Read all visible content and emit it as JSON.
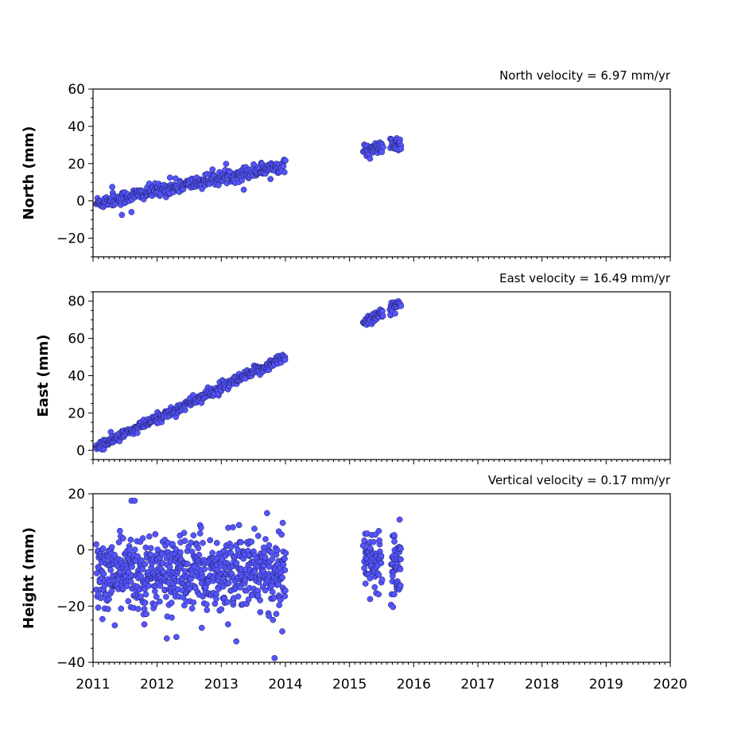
{
  "chart_data": [
    {
      "type": "scatter",
      "title": "North velocity = 6.97 mm/yr",
      "ylabel": "North (mm)",
      "xlim": [
        2011,
        2020
      ],
      "ylim": [
        -30,
        60
      ],
      "yticks": [
        -20,
        0,
        20,
        40,
        60
      ],
      "marker_color": "#5555ff",
      "series": [
        {
          "trend": {
            "x0": 2011.0,
            "y0": -1.5,
            "slope": 6.97
          },
          "segments": [
            {
              "x_start": 2011.05,
              "x_end": 2014.0,
              "count": 380,
              "scatter": 1.8
            },
            {
              "x_start": 2015.22,
              "x_end": 2015.52,
              "count": 50,
              "scatter": 1.5
            },
            {
              "x_start": 2015.63,
              "x_end": 2015.8,
              "count": 30,
              "scatter": 2.0
            }
          ],
          "outliers": [
            {
              "x": 2011.3,
              "y": 7.5
            },
            {
              "x": 2011.45,
              "y": -7.5
            },
            {
              "x": 2011.6,
              "y": -6.0
            },
            {
              "x": 2012.2,
              "y": 12.5
            },
            {
              "x": 2013.35,
              "y": 6.0
            }
          ]
        }
      ],
      "x_anchor": [
        2015.22,
        2015.52,
        2015.63,
        2015.8
      ],
      "y_anchor": [
        27,
        29,
        29,
        31
      ]
    },
    {
      "type": "scatter",
      "title": "East velocity = 16.49 mm/yr",
      "ylabel": "East (mm)",
      "xlim": [
        2011,
        2020
      ],
      "ylim": [
        -5,
        85
      ],
      "yticks": [
        0,
        20,
        40,
        60,
        80
      ],
      "marker_color": "#5555ff",
      "series": [
        {
          "trend": {
            "x0": 2011.0,
            "y0": 0.5,
            "slope": 16.49
          },
          "segments": [
            {
              "x_start": 2011.05,
              "x_end": 2014.0,
              "count": 380,
              "scatter": 1.4
            },
            {
              "x_start": 2015.22,
              "x_end": 2015.52,
              "count": 50,
              "scatter": 1.6
            },
            {
              "x_start": 2015.63,
              "x_end": 2015.8,
              "count": 30,
              "scatter": 2.0
            }
          ],
          "outliers": []
        }
      ],
      "x_anchor": [
        2015.22,
        2015.52,
        2015.63,
        2015.8
      ],
      "y_anchor": [
        70,
        73,
        74,
        79
      ]
    },
    {
      "type": "scatter",
      "title": "Vertical velocity = 0.17 mm/yr",
      "ylabel": "Height (mm)",
      "xlabel": "",
      "xlim": [
        2011,
        2020
      ],
      "ylim": [
        -40,
        20
      ],
      "yticks": [
        -40,
        -20,
        0,
        20
      ],
      "xticks": [
        2011,
        2012,
        2013,
        2014,
        2015,
        2016,
        2017,
        2018,
        2019,
        2020
      ],
      "marker_color": "#5555ff",
      "series": [
        {
          "trend": {
            "x0": 2011.0,
            "y0": -8.5,
            "slope": 0.17
          },
          "segments": [
            {
              "x_start": 2011.05,
              "x_end": 2014.0,
              "count": 700,
              "scatter": 6.5
            },
            {
              "x_start": 2015.22,
              "x_end": 2015.5,
              "count": 70,
              "scatter": 5.0
            },
            {
              "x_start": 2015.65,
              "x_end": 2015.8,
              "count": 50,
              "scatter": 6.0
            }
          ],
          "outliers": [
            {
              "x": 2011.6,
              "y": 17.5
            },
            {
              "x": 2011.65,
              "y": 17.5
            },
            {
              "x": 2012.15,
              "y": -31.5
            },
            {
              "x": 2012.3,
              "y": -31.0
            },
            {
              "x": 2013.83,
              "y": -38.5
            },
            {
              "x": 2013.95,
              "y": -29.0
            },
            {
              "x": 2015.32,
              "y": -17.5
            },
            {
              "x": 2015.78,
              "y": 10.8
            },
            {
              "x": 2011.8,
              "y": -26.5
            }
          ]
        }
      ],
      "x_anchor": [
        2015.22,
        2015.5,
        2015.65,
        2015.8
      ],
      "y_anchor": [
        -3,
        -3,
        -4,
        -5
      ]
    }
  ]
}
